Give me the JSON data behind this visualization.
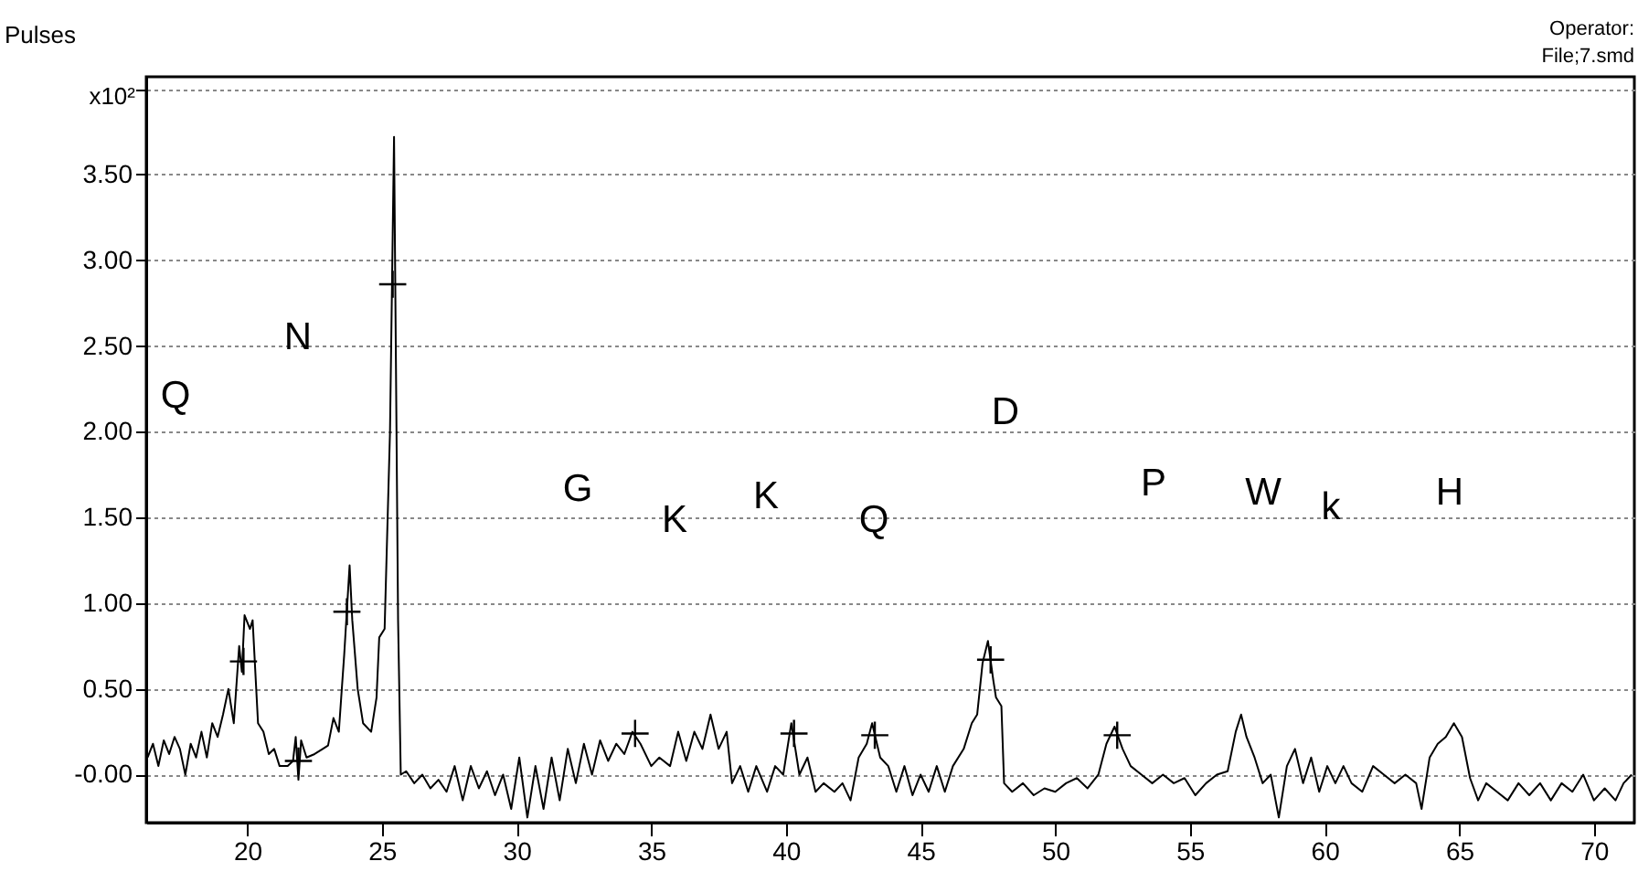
{
  "chart_data": {
    "type": "line",
    "ylabel": "Pulses",
    "annotations": [
      "x10²",
      "Operator:",
      "File;7.smd",
      "Q",
      "N",
      "G",
      "K",
      "K",
      "Q",
      "D",
      "P",
      "W",
      "k",
      "H"
    ],
    "xlim": [
      16.25,
      71.5
    ],
    "xticks": [
      20,
      25,
      30,
      35,
      40,
      45,
      50,
      55,
      60,
      65,
      70
    ],
    "ylim": [
      -0.28,
      4.07
    ],
    "yticks": [
      {
        "value": 0,
        "label": "-0.00"
      },
      {
        "value": 0.5,
        "label": "0.50"
      },
      {
        "value": 1,
        "label": "1.00"
      },
      {
        "value": 1.5,
        "label": "1.50"
      },
      {
        "value": 2,
        "label": "2.00"
      },
      {
        "value": 2.5,
        "label": "2.50"
      },
      {
        "value": 3,
        "label": "3.00"
      },
      {
        "value": 3.5,
        "label": "3.50"
      },
      {
        "value": 4,
        "label": null
      }
    ],
    "grid": "y",
    "series": [
      {
        "color": "#000000",
        "line_style": "solid",
        "x": [
          16.3,
          16.5,
          16.7,
          16.9,
          17.1,
          17.3,
          17.5,
          17.7,
          17.9,
          18.1,
          18.3,
          18.5,
          18.7,
          18.9,
          19.1,
          19.3,
          19.5,
          19.7,
          19.8,
          19.9,
          20.1,
          20.2,
          20.4,
          20.6,
          20.8,
          21.0,
          21.2,
          21.5,
          21.7,
          21.8,
          21.9,
          22.0,
          22.2,
          22.5,
          22.8,
          23.0,
          23.2,
          23.4,
          23.6,
          23.8,
          23.9,
          24.1,
          24.3,
          24.6,
          24.8,
          24.9,
          25.1,
          25.3,
          25.45,
          25.6,
          25.7,
          25.9,
          26.2,
          26.5,
          26.8,
          27.1,
          27.4,
          27.7,
          28.0,
          28.3,
          28.6,
          28.9,
          29.2,
          29.5,
          29.8,
          30.1,
          30.4,
          30.7,
          31.0,
          31.3,
          31.6,
          31.9,
          32.2,
          32.5,
          32.8,
          33.1,
          33.4,
          33.7,
          34.0,
          34.3,
          34.6,
          35.0,
          35.3,
          35.7,
          36.0,
          36.3,
          36.6,
          36.9,
          37.2,
          37.5,
          37.8,
          38.0,
          38.3,
          38.6,
          38.9,
          39.3,
          39.6,
          39.9,
          40.2,
          40.5,
          40.8,
          41.1,
          41.4,
          41.8,
          42.1,
          42.4,
          42.7,
          43.0,
          43.2,
          43.5,
          43.8,
          44.1,
          44.4,
          44.7,
          45.0,
          45.3,
          45.6,
          45.9,
          46.2,
          46.6,
          46.9,
          47.1,
          47.3,
          47.5,
          47.7,
          47.8,
          48.0,
          48.1,
          48.4,
          48.8,
          49.2,
          49.6,
          50.0,
          50.4,
          50.8,
          51.2,
          51.6,
          51.9,
          52.2,
          52.5,
          52.8,
          53.2,
          53.6,
          54.0,
          54.4,
          54.8,
          55.2,
          55.6,
          56.0,
          56.4,
          56.7,
          56.9,
          57.1,
          57.4,
          57.7,
          58.0,
          58.3,
          58.6,
          58.9,
          59.2,
          59.5,
          59.8,
          60.1,
          60.4,
          60.7,
          61.0,
          61.4,
          61.8,
          62.2,
          62.6,
          63.0,
          63.4,
          63.6,
          63.9,
          64.2,
          64.5,
          64.8,
          65.1,
          65.4,
          65.7,
          66.0,
          66.4,
          66.8,
          67.2,
          67.6,
          68.0,
          68.4,
          68.8,
          69.2,
          69.6,
          70.0,
          70.4,
          70.8,
          71.1,
          71.4
        ],
        "values": [
          0.1,
          0.18,
          0.05,
          0.2,
          0.12,
          0.22,
          0.15,
          0.0,
          0.18,
          0.1,
          0.25,
          0.1,
          0.3,
          0.22,
          0.35,
          0.5,
          0.3,
          0.75,
          0.6,
          0.93,
          0.85,
          0.9,
          0.3,
          0.25,
          0.12,
          0.15,
          0.05,
          0.05,
          0.08,
          0.22,
          -0.03,
          0.2,
          0.1,
          0.12,
          0.15,
          0.17,
          0.33,
          0.25,
          0.7,
          1.22,
          0.9,
          0.5,
          0.3,
          0.25,
          0.45,
          0.8,
          0.85,
          2.0,
          3.72,
          0.9,
          0.0,
          0.02,
          -0.05,
          0.0,
          -0.08,
          -0.03,
          -0.1,
          0.05,
          -0.15,
          0.05,
          -0.08,
          0.02,
          -0.12,
          0.0,
          -0.2,
          0.1,
          -0.25,
          0.05,
          -0.2,
          0.1,
          -0.15,
          0.15,
          -0.05,
          0.18,
          0.0,
          0.2,
          0.08,
          0.18,
          0.12,
          0.25,
          0.18,
          0.05,
          0.1,
          0.05,
          0.25,
          0.08,
          0.25,
          0.15,
          0.35,
          0.15,
          0.25,
          -0.05,
          0.05,
          -0.1,
          0.05,
          -0.1,
          0.05,
          0.0,
          0.3,
          0.0,
          0.1,
          -0.1,
          -0.05,
          -0.1,
          -0.05,
          -0.15,
          0.1,
          0.18,
          0.3,
          0.1,
          0.05,
          -0.1,
          0.05,
          -0.12,
          0.0,
          -0.1,
          0.05,
          -0.1,
          0.05,
          0.15,
          0.3,
          0.35,
          0.65,
          0.78,
          0.55,
          0.45,
          0.4,
          -0.05,
          -0.1,
          -0.05,
          -0.12,
          -0.08,
          -0.1,
          -0.05,
          -0.02,
          -0.08,
          0.0,
          0.18,
          0.28,
          0.15,
          0.05,
          0.0,
          -0.05,
          0.0,
          -0.05,
          -0.02,
          -0.12,
          -0.05,
          0.0,
          0.02,
          0.25,
          0.35,
          0.22,
          0.1,
          -0.05,
          0.0,
          -0.25,
          0.05,
          0.15,
          -0.05,
          0.1,
          -0.1,
          0.05,
          -0.05,
          0.05,
          -0.05,
          -0.1,
          0.05,
          0.0,
          -0.05,
          0.0,
          -0.05,
          -0.2,
          0.1,
          0.18,
          0.22,
          0.3,
          0.22,
          -0.02,
          -0.15,
          -0.05,
          -0.1,
          -0.15,
          -0.05,
          -0.12,
          -0.05,
          -0.15,
          -0.05,
          -0.1,
          0.0,
          -0.15,
          -0.08,
          -0.15,
          -0.05,
          0.0
        ]
      },
      {
        "type": "scatter",
        "color": "#000000",
        "marker": "cross",
        "x": [
          19.86,
          21.9,
          23.7,
          25.4,
          34.4,
          40.3,
          43.3,
          47.6,
          52.3
        ],
        "values": [
          0.66,
          0.08,
          0.95,
          2.86,
          0.24,
          0.24,
          0.23,
          0.67,
          0.23
        ]
      }
    ]
  }
}
